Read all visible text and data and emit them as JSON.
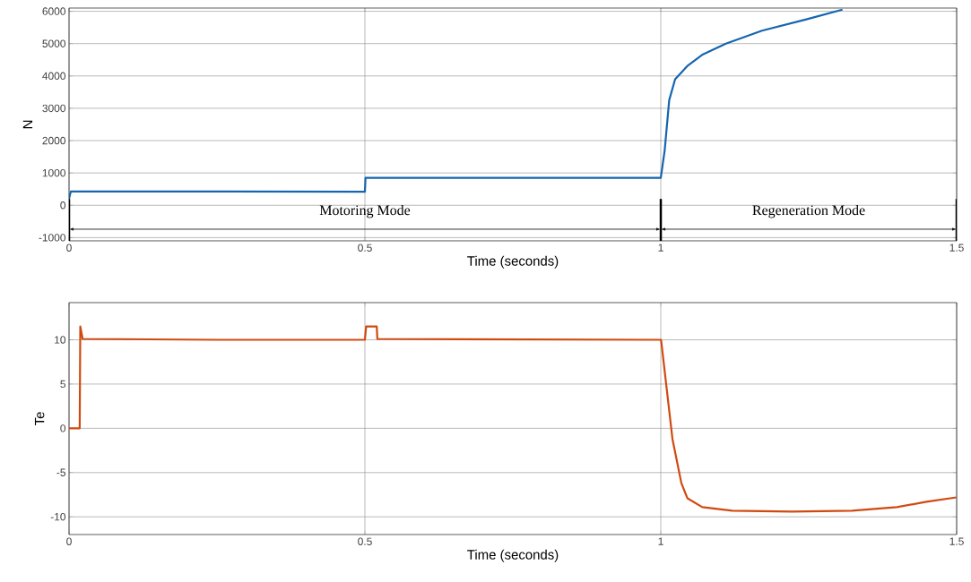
{
  "chart_data": [
    {
      "type": "line",
      "xlabel": "Time (seconds)",
      "ylabel": "N",
      "color": "#1565b0",
      "grid": true,
      "x": [
        0,
        0.003,
        0.5,
        0.501,
        1.0,
        1.0066,
        1.0142,
        1.0242,
        1.0445,
        1.0697,
        1.11,
        1.171,
        1.246,
        1.307
      ],
      "values": [
        200,
        430,
        420,
        850,
        850,
        1700,
        3250,
        3900,
        4300,
        4650,
        5000,
        5400,
        5750,
        6050
      ],
      "xlim": [
        0,
        1.5
      ],
      "ylim": [
        -1100,
        6100
      ],
      "xticks": [
        0,
        0.5,
        1,
        1.5
      ],
      "yticks": [
        -1000,
        0,
        1000,
        2000,
        3000,
        4000,
        5000,
        6000
      ],
      "ref_lines": [
        {
          "axis": "x",
          "value": 0,
          "color": "#000000"
        },
        {
          "axis": "x",
          "value": 1,
          "color": "#000000"
        },
        {
          "axis": "x",
          "value": 1.5,
          "color": "#000000"
        }
      ],
      "annotations": [
        "Motoring Mode",
        "Regeneration Mode"
      ]
    },
    {
      "type": "line",
      "xlabel": "Time (seconds)",
      "ylabel": "Te",
      "color": "#d04a10",
      "grid": true,
      "x": [
        0,
        0.018,
        0.019,
        0.023,
        0.25,
        0.5,
        0.502,
        0.52,
        0.521,
        1.0005,
        1.0197,
        1.0348,
        1.045,
        1.0702,
        1.1207,
        1.222,
        1.3232,
        1.399,
        1.449,
        1.4995
      ],
      "values": [
        0,
        0,
        11.5,
        10.1,
        10,
        10,
        11.5,
        11.5,
        10.1,
        10,
        -1.2,
        -6.2,
        -7.9,
        -8.9,
        -9.3,
        -9.4,
        -9.3,
        -8.9,
        -8.3,
        -7.8
      ],
      "xlim": [
        0,
        1.5
      ],
      "ylim": [
        -12,
        14.2
      ],
      "xticks": [
        0,
        0.5,
        1,
        1.5
      ],
      "yticks": [
        -10,
        -5,
        0,
        5,
        10
      ]
    }
  ]
}
